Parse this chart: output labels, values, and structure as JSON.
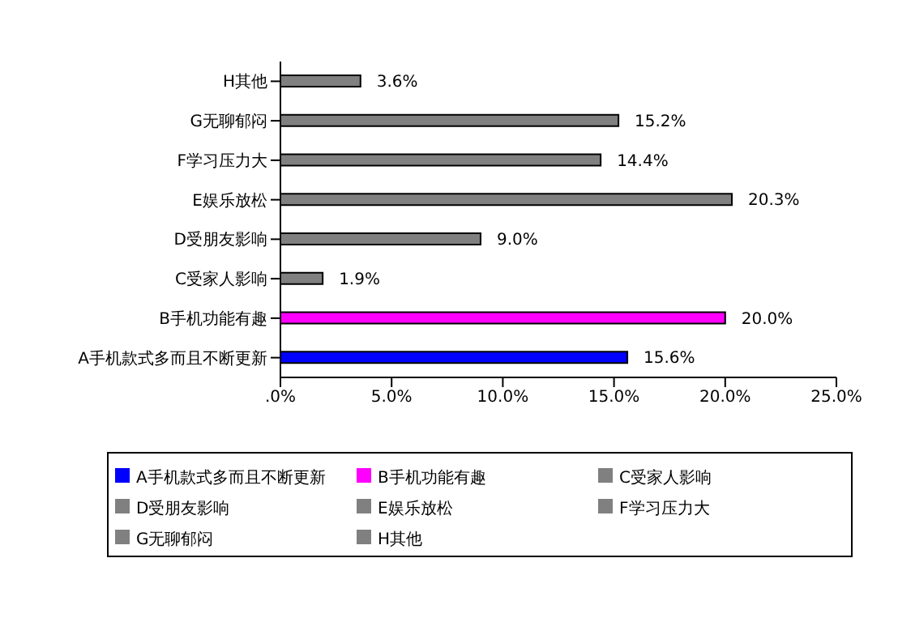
{
  "chart_data": {
    "type": "bar",
    "orientation": "horizontal",
    "stacked": true,
    "categories": [
      "H其他",
      "G无聊郁闷",
      "F学习压力大",
      "E娱乐放松",
      "D受朋友影响",
      "C受家人影响",
      "B手机功能有趣",
      "A手机款式多而且不断更新"
    ],
    "series": [
      {
        "name": "A手机款式多而且不断更新",
        "color": "#0000ff",
        "values": [
          null,
          null,
          null,
          null,
          null,
          null,
          null,
          15.6
        ],
        "value_labels": [
          null,
          null,
          null,
          null,
          null,
          null,
          null,
          "15.6%"
        ]
      },
      {
        "name": "B手机功能有趣",
        "color": "#ff00ff",
        "values": [
          null,
          null,
          null,
          null,
          null,
          null,
          20.0,
          null
        ],
        "value_labels": [
          null,
          null,
          null,
          null,
          null,
          null,
          "20.0%",
          null
        ]
      },
      {
        "name": "C受家人影响",
        "color": "#808080",
        "values": [
          null,
          null,
          null,
          null,
          null,
          1.9,
          null,
          null
        ],
        "value_labels": [
          null,
          null,
          null,
          null,
          null,
          "1.9%",
          null,
          null
        ]
      },
      {
        "name": "D受朋友影响",
        "color": "#808080",
        "values": [
          null,
          null,
          null,
          null,
          9.0,
          null,
          null,
          null
        ],
        "value_labels": [
          null,
          null,
          null,
          null,
          "9.0%",
          null,
          null,
          null
        ]
      },
      {
        "name": "E娱乐放松",
        "color": "#808080",
        "values": [
          null,
          null,
          null,
          20.3,
          null,
          null,
          null,
          null
        ],
        "value_labels": [
          null,
          null,
          null,
          "20.3%",
          null,
          null,
          null,
          null
        ]
      },
      {
        "name": "F学习压力大",
        "color": "#808080",
        "values": [
          null,
          null,
          14.4,
          null,
          null,
          null,
          null,
          null
        ],
        "value_labels": [
          null,
          null,
          "14.4%",
          null,
          null,
          null,
          null,
          null
        ]
      },
      {
        "name": "G无聊郁闷",
        "color": "#808080",
        "values": [
          null,
          15.2,
          null,
          null,
          null,
          null,
          null,
          null
        ],
        "value_labels": [
          null,
          "15.2%",
          null,
          null,
          null,
          null,
          null,
          null
        ]
      },
      {
        "name": "H其他",
        "color": "#808080",
        "values": [
          3.6,
          null,
          null,
          null,
          null,
          null,
          null,
          null
        ],
        "value_labels": [
          "3.6%",
          null,
          null,
          null,
          null,
          null,
          null,
          null
        ]
      }
    ],
    "xlim": [
      0,
      25
    ],
    "xticks": [
      {
        "value": 0,
        "label": ".0%"
      },
      {
        "value": 5,
        "label": "5.0%"
      },
      {
        "value": 10,
        "label": "10.0%"
      },
      {
        "value": 15,
        "label": "15.0%"
      },
      {
        "value": 20,
        "label": "20.0%"
      },
      {
        "value": 25,
        "label": "25.0%"
      }
    ],
    "legend": "bottom"
  }
}
